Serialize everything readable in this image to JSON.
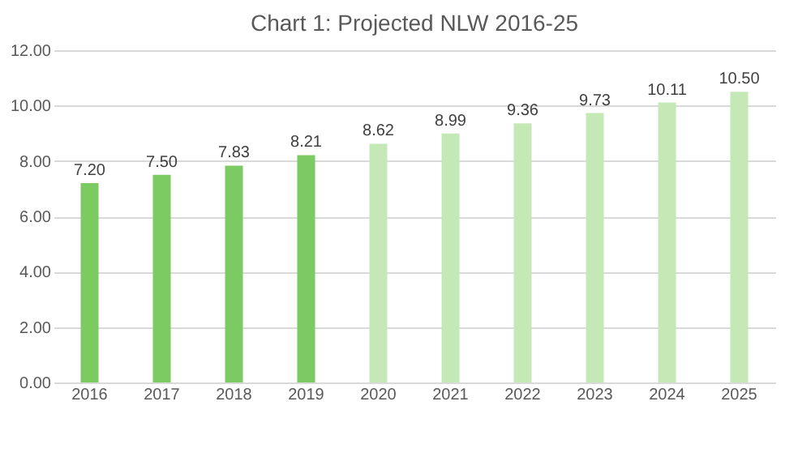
{
  "chart_data": {
    "type": "bar",
    "title": "Chart 1: Projected NLW 2016-25",
    "categories": [
      "2016",
      "2017",
      "2018",
      "2019",
      "2020",
      "2021",
      "2022",
      "2023",
      "2024",
      "2025"
    ],
    "values": [
      7.2,
      7.5,
      7.83,
      8.21,
      8.62,
      8.99,
      9.36,
      9.73,
      10.11,
      10.5
    ],
    "value_labels": [
      "7.20",
      "7.50",
      "7.83",
      "8.21",
      "8.62",
      "8.99",
      "9.36",
      "9.73",
      "10.11",
      "10.50"
    ],
    "colors": [
      "#7cca62",
      "#7cca62",
      "#7cca62",
      "#7cca62",
      "#c5e8b7",
      "#c5e8b7",
      "#c5e8b7",
      "#c5e8b7",
      "#c5e8b7",
      "#c5e8b7"
    ],
    "ylim": [
      0,
      12
    ],
    "yticks": [
      {
        "value": 0,
        "label": "0.00"
      },
      {
        "value": 2,
        "label": "2.00"
      },
      {
        "value": 4,
        "label": "4.00"
      },
      {
        "value": 6,
        "label": "6.00"
      },
      {
        "value": 8,
        "label": "8.00"
      },
      {
        "value": 10,
        "label": "10.00"
      },
      {
        "value": 12,
        "label": "12.00"
      }
    ],
    "grid": "y",
    "legend": false
  }
}
